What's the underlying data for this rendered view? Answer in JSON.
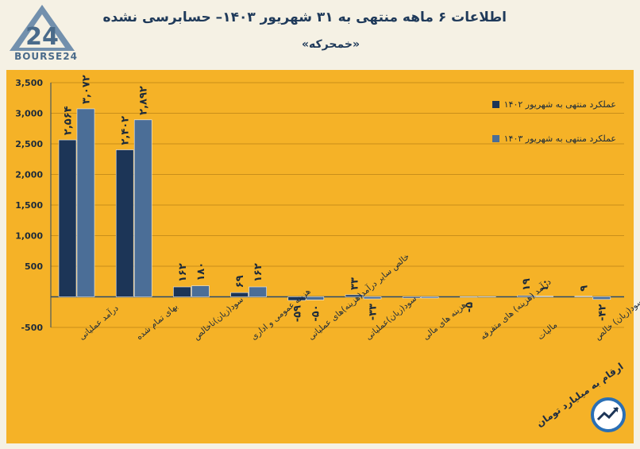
{
  "header": {
    "logo_text": "BOURSE24",
    "title": "اطلاعات ۶ ماهه منتهی به ۳۱ شهریور ۱۴۰۳– حسابرسی نشده",
    "subtitle": "«خمحرکه»"
  },
  "footer": {
    "note": "ارقام به میلیارد تومان"
  },
  "colors": {
    "series_1402": "#1c3557",
    "series_1403": "#4b6e97",
    "plot_bg": "#f5b227",
    "page_bg": "#f5f1e4"
  },
  "chart_data": {
    "type": "bar",
    "categories": [
      "درآمد عملیاتی",
      "بهای تمام شده",
      "سود(زیان)ناخالص",
      "هزینه عمومی و اداری",
      "خالص سایر درآمد(هزینه)های عملیاتی",
      "سود(زیان)عملیاتی",
      "هزینه های مالی",
      "درآمد (هزینه) های متفرقه",
      "مالیات",
      "سود(زیان) خالص"
    ],
    "series": [
      {
        "name": "عملکرد منتهی به شهریور ۱۴۰۲",
        "values": [
          2564,
          2402,
          162,
          69,
          -59,
          33,
          0,
          -5,
          19,
          9
        ],
        "labels": [
          "۲,۵۶۴",
          "۲,۴۰۲",
          "۱۶۲",
          "۶۹",
          "-۵۹",
          "۳۳",
          "",
          "-۵",
          "۱۹",
          "۹"
        ]
      },
      {
        "name": "عملکرد منتهی به شهریور ۱۴۰۳",
        "values": [
          3072,
          2892,
          180,
          162,
          -50,
          -33,
          0,
          3,
          10,
          -42
        ],
        "labels": [
          "۳,۰۷۲",
          "۲,۸۹۲",
          "۱۸۰",
          "۱۶۲",
          "-۵۰",
          "-۳۳",
          "",
          "",
          "۱۰",
          "-۴۲"
        ]
      }
    ],
    "yticks": [
      "3,500",
      "3,000",
      "2,500",
      "2,000",
      "1,500",
      "1,000",
      "500",
      "",
      "-500"
    ],
    "ytick_values": [
      3500,
      3000,
      2500,
      2000,
      1500,
      1000,
      500,
      0,
      -500
    ],
    "ylim": [
      -500,
      3500
    ],
    "grid": true,
    "legend_position": "top-right"
  }
}
